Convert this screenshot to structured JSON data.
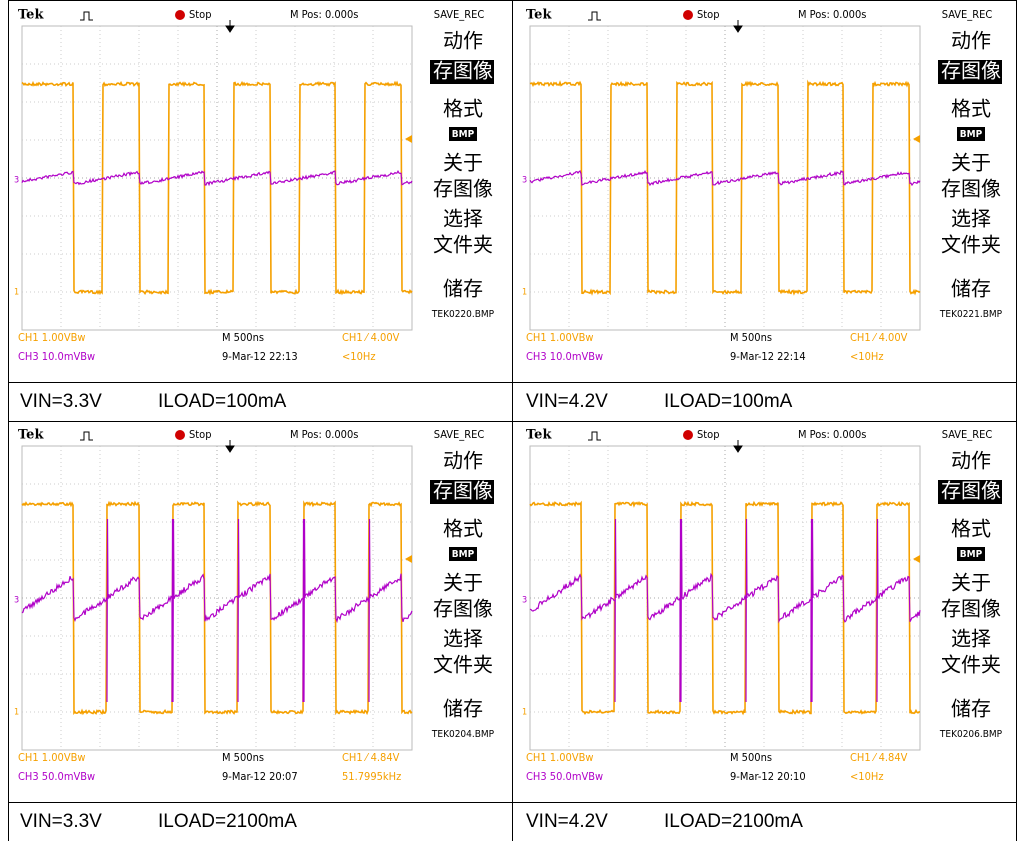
{
  "panels": [
    {
      "scope": {
        "brand": "Tek",
        "status": "Stop",
        "mpos": "M Pos: 0.000s",
        "menu_title": "SAVE_REC",
        "menu": [
          "动作",
          "存图像",
          "格式",
          "BMP",
          "关于",
          "存图像",
          "选择",
          "文件夹",
          "储存"
        ],
        "filename": "TEK0220.BMP",
        "ch3_marker": "3",
        "ch1_marker": "1",
        "ch1": "CH1 1.00VBw",
        "timebase": "M 500ns",
        "trigger": "CH1 ⁄ 4.00V",
        "ch3": "CH3 10.0mVBw",
        "date": "9-Mar-12 22:13",
        "freq": "<10Hz"
      },
      "caption": {
        "vin": "VIN=3.3V",
        "iload": "ILOAD=100mA"
      }
    },
    {
      "scope": {
        "brand": "Tek",
        "status": "Stop",
        "mpos": "M Pos: 0.000s",
        "menu_title": "SAVE_REC",
        "menu": [
          "动作",
          "存图像",
          "格式",
          "BMP",
          "关于",
          "存图像",
          "选择",
          "文件夹",
          "储存"
        ],
        "filename": "TEK0221.BMP",
        "ch3_marker": "3",
        "ch1_marker": "1",
        "ch1": "CH1 1.00VBw",
        "timebase": "M 500ns",
        "trigger": "CH1 ⁄ 4.00V",
        "ch3": "CH3 10.0mVBw",
        "date": "9-Mar-12 22:14",
        "freq": "<10Hz"
      },
      "caption": {
        "vin": "VIN=4.2V",
        "iload": "ILOAD=100mA"
      }
    },
    {
      "scope": {
        "brand": "Tek",
        "status": "Stop",
        "mpos": "M Pos: 0.000s",
        "menu_title": "SAVE_REC",
        "menu": [
          "动作",
          "存图像",
          "格式",
          "BMP",
          "关于",
          "存图像",
          "选择",
          "文件夹",
          "储存"
        ],
        "filename": "TEK0204.BMP",
        "ch3_marker": "3",
        "ch1_marker": "1",
        "ch1": "CH1 1.00VBw",
        "timebase": "M 500ns",
        "trigger": "CH1 ⁄ 4.84V",
        "ch3": "CH3 50.0mVBw",
        "date": "9-Mar-12 20:07",
        "freq": "51.7995kHz"
      },
      "caption": {
        "vin": "VIN=3.3V",
        "iload": "ILOAD=2100mA"
      }
    },
    {
      "scope": {
        "brand": "Tek",
        "status": "Stop",
        "mpos": "M Pos: 0.000s",
        "menu_title": "SAVE_REC",
        "menu": [
          "动作",
          "存图像",
          "格式",
          "BMP",
          "关于",
          "存图像",
          "选择",
          "文件夹",
          "储存"
        ],
        "filename": "TEK0206.BMP",
        "ch3_marker": "3",
        "ch1_marker": "1",
        "ch1": "CH1 1.00VBw",
        "timebase": "M 500ns",
        "trigger": "CH1 ⁄ 4.84V",
        "ch3": "CH3 50.0mVBw",
        "date": "9-Mar-12 20:10",
        "freq": "<10Hz"
      },
      "caption": {
        "vin": "VIN=4.2V",
        "iload": "ILOAD=2100mA"
      }
    }
  ]
}
